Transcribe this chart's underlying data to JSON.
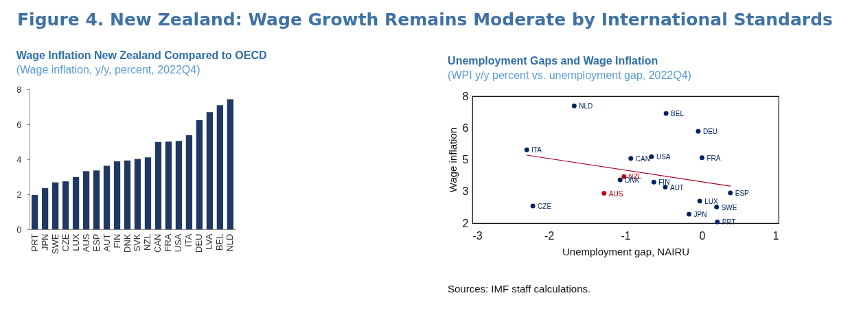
{
  "chart_data": [
    {
      "type": "other",
      "title": "Figure 4. New Zealand: Wage Growth Remains Moderate by International Standards"
    },
    {
      "type": "bar",
      "title": "Wage Inflation New Zealand Compared to OECD",
      "subtitle": "(Wage inflation, y/y, percent, 2022Q4)",
      "categories": [
        "PRT",
        "JPN",
        "SWE",
        "CZE",
        "LUX",
        "AUS",
        "ESP",
        "AUT",
        "FIN",
        "DNK",
        "SVK",
        "NZL",
        "CAN",
        "FRA",
        "USA",
        "ITA",
        "DEU",
        "LVA",
        "BEL",
        "NLD"
      ],
      "values": [
        1.96,
        2.35,
        2.68,
        2.74,
        2.98,
        3.32,
        3.36,
        3.63,
        3.88,
        3.93,
        4.02,
        4.11,
        4.99,
        5.01,
        5.05,
        5.37,
        6.24,
        6.7,
        7.09,
        7.43
      ],
      "color": "#1f3864",
      "ylim": [
        0,
        8
      ],
      "yticks": [
        0,
        2,
        4,
        6,
        8
      ]
    },
    {
      "type": "scatter",
      "title": "Unemployment Gaps and Wage Inflation",
      "subtitle": "(WPI y/y percent vs. unemployment gap, 2022Q4)",
      "xlabel": "Unemployment gap, NAIRU",
      "ylabel": "Wage inflation",
      "marker": "circle",
      "xlim": [
        -3,
        1
      ],
      "xticks": [
        -3,
        -2,
        -1,
        0,
        1
      ],
      "ylim": [
        2,
        8
      ],
      "yticks": [
        2,
        {
          "value": 3.5,
          "label": "3"
        },
        5,
        {
          "value": 6.5,
          "label": "6"
        },
        8
      ],
      "annotations": [
        "Sources: IMF staff calculations."
      ],
      "series": [
        {
          "name": "NLD",
          "color": "#002060",
          "x": [
            -1.67
          ],
          "values": [
            7.54
          ]
        },
        {
          "name": "BEL",
          "color": "#002060",
          "x": [
            -0.47
          ],
          "values": [
            7.18
          ]
        },
        {
          "name": "DEU",
          "color": "#002060",
          "x": [
            -0.05
          ],
          "values": [
            6.34
          ]
        },
        {
          "name": "ITA",
          "color": "#002060",
          "x": [
            -2.29
          ],
          "values": [
            5.46
          ]
        },
        {
          "name": "CAN",
          "color": "#002060",
          "x": [
            -0.93
          ],
          "values": [
            5.06
          ]
        },
        {
          "name": "USA",
          "color": "#002060",
          "x": [
            -0.66
          ],
          "values": [
            5.14
          ]
        },
        {
          "name": "FRA",
          "color": "#002060",
          "x": [
            0.0
          ],
          "values": [
            5.09
          ]
        },
        {
          "name": "NZL",
          "color": "#c00000",
          "x": [
            -1.02
          ],
          "values": [
            4.2
          ]
        },
        {
          "name": "DNK",
          "color": "#002060",
          "x": [
            -1.07
          ],
          "values": [
            4.04
          ]
        },
        {
          "name": "FIN",
          "color": "#002060",
          "x": [
            -0.63
          ],
          "values": [
            3.94
          ]
        },
        {
          "name": "AUT",
          "color": "#002060",
          "x": [
            -0.48
          ],
          "values": [
            3.7
          ]
        },
        {
          "name": "ESP",
          "color": "#002060",
          "x": [
            0.37
          ],
          "values": [
            3.43
          ]
        },
        {
          "name": "AUS",
          "color": "#c00000",
          "x": [
            -1.28
          ],
          "values": [
            3.41
          ]
        },
        {
          "name": "LUX",
          "color": "#002060",
          "x": [
            -0.03
          ],
          "values": [
            3.04
          ]
        },
        {
          "name": "CZE",
          "color": "#002060",
          "x": [
            -2.21
          ],
          "values": [
            2.81
          ]
        },
        {
          "name": "SWE",
          "color": "#002060",
          "x": [
            0.19
          ],
          "values": [
            2.76
          ]
        },
        {
          "name": "JPN",
          "color": "#002060",
          "x": [
            -0.17
          ],
          "values": [
            2.42
          ]
        },
        {
          "name": "PRT",
          "color": "#002060",
          "x": [
            0.2
          ],
          "values": [
            2.06
          ]
        },
        {
          "type": "line",
          "marker": "none",
          "color": "#a50021",
          "x": [
            -2.29,
            0.37
          ],
          "values": [
            5.21,
            3.75
          ]
        }
      ]
    }
  ]
}
